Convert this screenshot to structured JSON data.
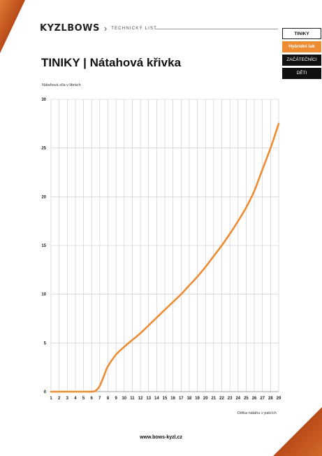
{
  "header": {
    "logo_text": "KYZLBOWS",
    "logo_sub": "TECHNICKÝ LIST",
    "tabs": [
      {
        "label": "TINIKY"
      },
      {
        "label": "Hybridní luk"
      },
      {
        "label": "ZAČÁTEČNÍCI"
      },
      {
        "label": "DĚTI"
      }
    ]
  },
  "title": "TINIKY | Nátahová křivka",
  "footer": "www.bows-kyzl.cz",
  "colors": {
    "accent": "#ee8c34",
    "wood": "#c8571e",
    "grid": "#c8c8c8"
  },
  "chart_data": {
    "type": "line",
    "ylabel": "Nátahová síla v librách",
    "xlabel": "Délka nátahu v palcích",
    "xlim": [
      1,
      29
    ],
    "ylim": [
      0,
      30
    ],
    "x_ticks": [
      1,
      2,
      3,
      4,
      5,
      6,
      7,
      8,
      9,
      10,
      11,
      12,
      13,
      14,
      15,
      16,
      17,
      18,
      19,
      20,
      21,
      22,
      23,
      24,
      25,
      26,
      27,
      28,
      29
    ],
    "y_ticks": [
      0,
      5,
      10,
      15,
      20,
      25,
      30
    ],
    "grid": true,
    "series": [
      {
        "color": "#ee8c34",
        "x": [
          1,
          5,
          6,
          6.5,
          7,
          7.5,
          8,
          9,
          10,
          11,
          12,
          13,
          14,
          15,
          16,
          17,
          18,
          19,
          20,
          21,
          22,
          23,
          24,
          25,
          26,
          27,
          28,
          29
        ],
        "y": [
          0,
          0,
          0,
          0.1,
          0.6,
          1.6,
          2.6,
          3.8,
          4.6,
          5.3,
          6.0,
          6.8,
          7.6,
          8.4,
          9.2,
          10.0,
          10.9,
          11.8,
          12.8,
          13.9,
          15.0,
          16.2,
          17.5,
          18.9,
          20.6,
          22.8,
          25.0,
          27.5
        ]
      }
    ]
  }
}
